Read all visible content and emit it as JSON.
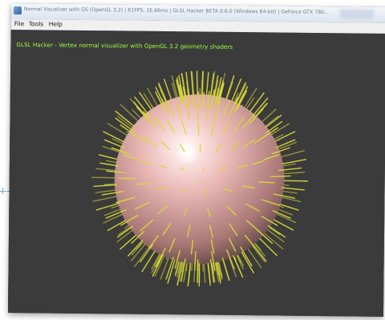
{
  "window": {
    "title": "Normal Visualizer with GS (OpenGL 3.2) | 61FPS, 16.66ms | GLSL Hacker BETA 0.6.0 (Windows 64-bit) | GeForce GTX 780..."
  },
  "menu": {
    "items": [
      {
        "label": "File"
      },
      {
        "label": "Tools"
      },
      {
        "label": "Help"
      }
    ]
  },
  "viewport": {
    "overlay": "GLSL Hacker - Vertex normal visualizer with OpenGL 3.2 geometry shaders",
    "background_color": "#3b3b3b",
    "overlay_color": "#9cff45",
    "sphere_color": "#e9b7b4",
    "normal_color": "#d9d93a"
  }
}
